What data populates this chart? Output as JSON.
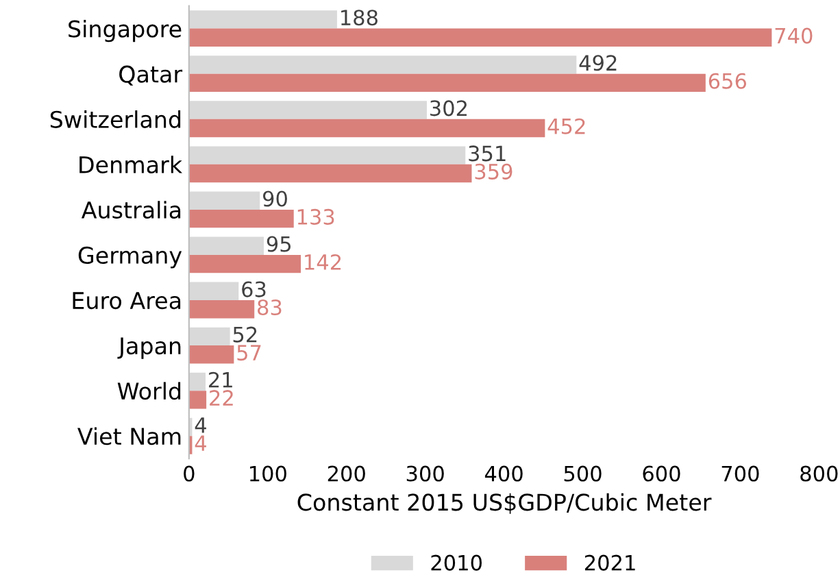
{
  "chart_data": {
    "type": "bar",
    "orientation": "horizontal",
    "xlabel": "Constant 2015 US$GDP/Cubic Meter",
    "categories": [
      "Singapore",
      "Qatar",
      "Switzerland",
      "Denmark",
      "Australia",
      "Germany",
      "Euro Area",
      "Japan",
      "World",
      "Viet Nam"
    ],
    "series": [
      {
        "name": "2010",
        "color": "#d9d9d9",
        "values": [
          188,
          492,
          302,
          351,
          90,
          95,
          63,
          52,
          21,
          4
        ]
      },
      {
        "name": "2021",
        "color": "#d9807b",
        "values": [
          740,
          656,
          452,
          359,
          133,
          142,
          83,
          57,
          22,
          4
        ]
      }
    ],
    "xlim": [
      0,
      800
    ],
    "xticks": [
      0,
      100,
      200,
      300,
      400,
      500,
      600,
      700,
      800
    ],
    "grid": false,
    "legend": "bottom",
    "data_labels": true
  }
}
